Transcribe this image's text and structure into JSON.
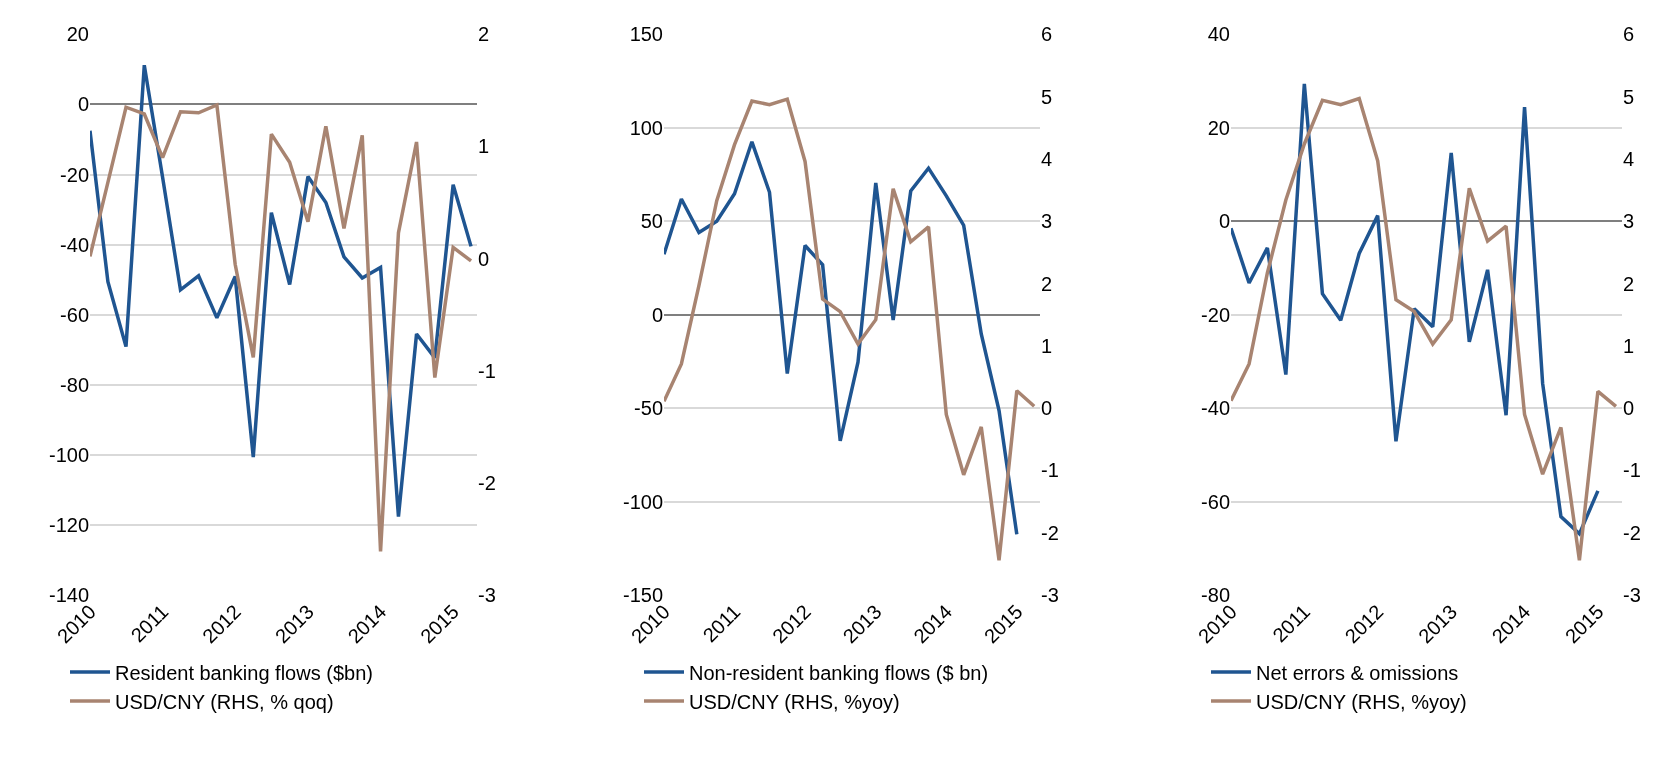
{
  "chart_data": [
    {
      "type": "line",
      "x": [
        "2010-01",
        "2010-04",
        "2010-07",
        "2010-10",
        "2011-01",
        "2011-04",
        "2011-07",
        "2011-10",
        "2012-01",
        "2012-04",
        "2012-07",
        "2012-10",
        "2013-01",
        "2013-04",
        "2013-07",
        "2013-10",
        "2014-01",
        "2014-04",
        "2014-07",
        "2014-10",
        "2015-01",
        "2015-04"
      ],
      "xlim": [
        "2010-01",
        "2015-05"
      ],
      "xticks": [
        "2010",
        "2011",
        "2012",
        "2013",
        "2014",
        "2015"
      ],
      "ylim": [
        -140,
        20
      ],
      "yticks": [
        -140,
        -120,
        -100,
        -80,
        -60,
        -40,
        -20,
        0,
        20
      ],
      "y2lim": [
        -3,
        2
      ],
      "y2ticks": [
        -3,
        -2,
        -1,
        0,
        1,
        2
      ],
      "grid": "y",
      "legend": "bottom",
      "marker": "none",
      "line_style": "solid",
      "series": [
        {
          "name": "Resident banking flows ($bn)",
          "color": "#1f5591",
          "values": [
            -7.5,
            -50.6,
            -69.1,
            11.2,
            -20.8,
            -52.9,
            -48.9,
            -60.9,
            -49.1,
            -100.6,
            -30.9,
            -51.4,
            -20.6,
            -28,
            -43.5,
            -49.5,
            -46.5,
            -117.6,
            -65.5,
            -72.3,
            -22.9,
            -40.5
          ]
        },
        {
          "name": "USD/CNY (RHS, % qoq)",
          "color": "#a88471",
          "axis": "y2",
          "values": [
            0.02,
            0.68,
            1.35,
            1.29,
            0.9,
            1.31,
            1.3,
            1.37,
            -0.05,
            -0.88,
            1.11,
            0.86,
            0.33,
            1.18,
            0.27,
            1.1,
            -2.61,
            0.23,
            1.04,
            -1.06,
            0.1,
            -0.02
          ]
        }
      ]
    },
    {
      "type": "line",
      "x": [
        "2010-01",
        "2010-04",
        "2010-07",
        "2010-10",
        "2011-01",
        "2011-04",
        "2011-07",
        "2011-10",
        "2012-01",
        "2012-04",
        "2012-07",
        "2012-10",
        "2013-01",
        "2013-04",
        "2013-07",
        "2013-10",
        "2014-01",
        "2014-04",
        "2014-07",
        "2014-10",
        "2015-01",
        "2015-04"
      ],
      "xlim": [
        "2010-01",
        "2015-05"
      ],
      "xticks": [
        "2010",
        "2011",
        "2012",
        "2013",
        "2014",
        "2015"
      ],
      "ylim": [
        -150,
        150
      ],
      "yticks": [
        -150,
        -100,
        -50,
        0,
        50,
        100,
        150
      ],
      "y2lim": [
        -3,
        6
      ],
      "y2ticks": [
        -3,
        -2,
        -1,
        0,
        1,
        2,
        3,
        4,
        5,
        6
      ],
      "grid": "y",
      "legend": "bottom",
      "marker": "none",
      "line_style": "solid",
      "series": [
        {
          "name": "Non-resident banking flows ($ bn)",
          "color": "#1f5591",
          "values": [
            32.3,
            61.9,
            44,
            50,
            64.7,
            92.5,
            65.5,
            -31.5,
            37,
            26.7,
            -67.5,
            -25.4,
            70.5,
            -2.8,
            66.2,
            78.4,
            63.6,
            47.8,
            -10.3,
            -51.3,
            -117.5,
            null
          ]
        },
        {
          "name": "USD/CNY (RHS, %yoy)",
          "color": "#a88471",
          "axis": "y2",
          "values": [
            0.11,
            0.71,
            1.97,
            3.33,
            4.23,
            4.93,
            4.87,
            4.96,
            3.96,
            1.75,
            1.55,
            1.03,
            1.42,
            3.52,
            2.67,
            2.91,
            -0.1,
            -1.07,
            -0.3,
            -2.44,
            0.28,
            0.03
          ]
        }
      ]
    },
    {
      "type": "line",
      "x": [
        "2010-01",
        "2010-04",
        "2010-07",
        "2010-10",
        "2011-01",
        "2011-04",
        "2011-07",
        "2011-10",
        "2012-01",
        "2012-04",
        "2012-07",
        "2012-10",
        "2013-01",
        "2013-04",
        "2013-07",
        "2013-10",
        "2014-01",
        "2014-04",
        "2014-07",
        "2014-10",
        "2015-01",
        "2015-04"
      ],
      "xlim": [
        "2010-01",
        "2015-05"
      ],
      "xticks": [
        "2010",
        "2011",
        "2012",
        "2013",
        "2014",
        "2015"
      ],
      "ylim": [
        -80,
        40
      ],
      "yticks": [
        -80,
        -60,
        -40,
        -20,
        0,
        20,
        40
      ],
      "y2lim": [
        -3,
        6
      ],
      "y2ticks": [
        -3,
        -2,
        -1,
        0,
        1,
        2,
        3,
        4,
        5,
        6
      ],
      "grid": "y",
      "legend": "bottom",
      "marker": "none",
      "line_style": "solid",
      "series": [
        {
          "name": "Net errors & omissions",
          "color": "#1f5591",
          "values": [
            -1.5,
            -13.2,
            -5.7,
            -32.8,
            29.4,
            -15.5,
            -21.2,
            -6.9,
            1.2,
            -47.1,
            -18.7,
            -22.6,
            14.6,
            -25.8,
            -10.4,
            -41.5,
            24.4,
            -34.7,
            -63.2,
            -66.9,
            -57.7,
            null
          ]
        },
        {
          "name": "USD/CNY (RHS, %yoy)",
          "color": "#a88471",
          "axis": "y2",
          "values": [
            0.12,
            0.71,
            2.17,
            3.34,
            4.24,
            4.94,
            4.87,
            4.97,
            3.97,
            1.74,
            1.55,
            1.03,
            1.42,
            3.53,
            2.68,
            2.92,
            -0.1,
            -1.06,
            -0.31,
            -2.44,
            0.27,
            0.03
          ]
        }
      ]
    }
  ]
}
